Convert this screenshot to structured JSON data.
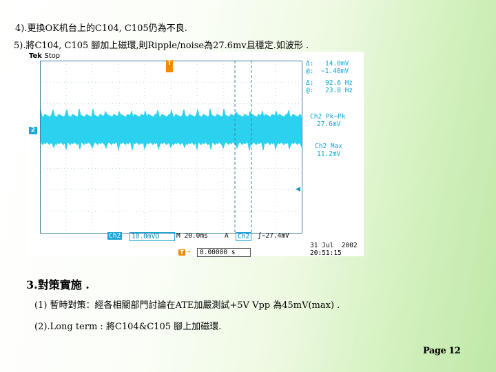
{
  "lines": [
    "4).更換OK机台上的C104, C105仍為不良.",
    "5).將C104, C105 腳加上磁環,則Ripple/noise為27.6mv且穩定.如波形 ."
  ],
  "scope": {
    "brand": "Tek",
    "state": "Stop",
    "trigger_marker": "T",
    "ch2_marker": "2",
    "measurements": {
      "delta_label": "Δ:",
      "delta_v": "14.0mV",
      "at_label": "@:",
      "at_v": "−1.40mV",
      "delta_f": "92.6 Hz",
      "at_f": "23.8 Hz",
      "pk_label": "Ch2 Pk−Pk",
      "pk_value": "27.6mV",
      "max_label": "Ch2 Max",
      "max_value": "11.2mV"
    },
    "status": {
      "ch": "Ch2",
      "volts": "10.0mV",
      "volts_unit": "Ω",
      "time": "M 20.0ms",
      "trig_mode": "A",
      "trig_ch": "Ch2",
      "trig_level": "−27.4mV",
      "trig_pos": "0.00000 s"
    },
    "date": "31 Jul  2002",
    "time": "20:51:15",
    "colors": {
      "trace": "#2ad2ee",
      "text": "#00a5d5",
      "grid": "#7aaec4"
    }
  },
  "heading": "3.對策實施 .",
  "bullets": [
    "(1) 暫時對策：經各相關部門討論在ATE加嚴測試+5V Vpp 為45mV(max) .",
    "(2).Long term : 將C104&C105 腳上加磁環."
  ],
  "page_label": "Page 12"
}
